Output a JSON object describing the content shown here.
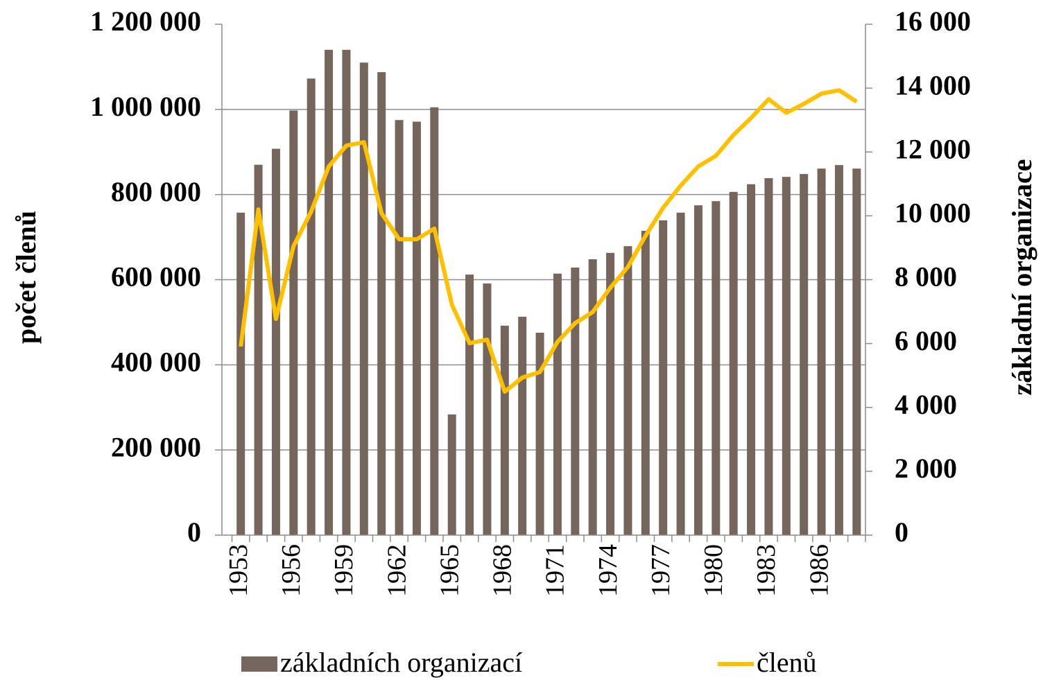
{
  "chart_data": {
    "type": "combo",
    "y_label": "počet členů",
    "y2_label": "základní organizace",
    "categories": [
      "1953",
      null,
      null,
      "1956",
      null,
      null,
      "1959",
      null,
      null,
      "1962",
      null,
      null,
      "1965",
      null,
      null,
      "1968",
      null,
      null,
      "1971",
      null,
      null,
      "1974",
      null,
      null,
      "1977",
      null,
      null,
      "1980",
      null,
      null,
      "1983",
      null,
      null,
      "1986",
      null,
      null
    ],
    "series": [
      {
        "name": "základních organizací",
        "type": "bar",
        "axis": "y2",
        "color": "#76655a",
        "values": [
          10100,
          11600,
          12100,
          13300,
          14300,
          15200,
          15200,
          14800,
          14500,
          13000,
          12950,
          13400,
          3780,
          8160,
          7880,
          6560,
          6840,
          6340,
          8190,
          8380,
          8640,
          8840,
          9050,
          9530,
          9860,
          10100,
          10330,
          10460,
          10750,
          10990,
          11180,
          11220,
          11310,
          11480,
          11590,
          11480
        ]
      },
      {
        "name": "členů",
        "type": "line",
        "color": "#ffc000",
        "values": [
          443000,
          765000,
          508000,
          679000,
          760000,
          866000,
          915000,
          923000,
          756000,
          695000,
          695000,
          720000,
          541000,
          451000,
          459000,
          337000,
          370000,
          383000,
          454000,
          498000,
          524000,
          581000,
          630000,
          703000,
          769000,
          821000,
          866000,
          891000,
          940000,
          980000,
          1024000,
          992000,
          1013000,
          1037000,
          1045000,
          1018000
        ]
      }
    ],
    "ylim": [
      0,
      1200000
    ],
    "yticks": [
      0,
      {
        "value": 200000,
        "label": "200 000"
      },
      {
        "value": 400000,
        "label": "400 000"
      },
      {
        "value": 600000,
        "label": "600 000"
      },
      {
        "value": 800000,
        "label": "800 000"
      },
      {
        "value": 1000000,
        "label": "1 000 000"
      },
      {
        "value": 1200000,
        "label": "1 200 000"
      }
    ],
    "y2lim": [
      0,
      16000
    ],
    "y2ticks": [
      0,
      {
        "value": 2000,
        "label": "2 000"
      },
      {
        "value": 4000,
        "label": "4 000"
      },
      {
        "value": 6000,
        "label": "6 000"
      },
      {
        "value": 8000,
        "label": "8 000"
      },
      {
        "value": 10000,
        "label": "10 000"
      },
      {
        "value": 12000,
        "label": "12 000"
      },
      {
        "value": 14000,
        "label": "14 000"
      },
      {
        "value": 16000,
        "label": "16 000"
      }
    ],
    "grid": true,
    "legend": "bottom"
  }
}
